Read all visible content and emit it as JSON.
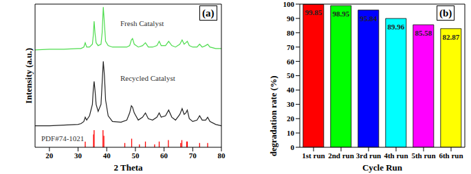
{
  "chart_data": [
    {
      "type": "line",
      "annotations": [
        "(a)"
      ],
      "xlabel": "2 Theta",
      "ylabel": "Intensity (a.u.)",
      "xlim": [
        15,
        80
      ],
      "xticks": [
        20,
        30,
        40,
        50,
        60,
        70,
        80
      ],
      "ylim": [
        0,
        100
      ],
      "yticks": [],
      "tick_labels": "x",
      "grid": false,
      "x": [
        15,
        20,
        25,
        30,
        31,
        32,
        32.5,
        33,
        34,
        35,
        35.3,
        35.6,
        35.9,
        36.3,
        37,
        38,
        38.4,
        38.8,
        39.2,
        39.6,
        40.5,
        42,
        45,
        47,
        48,
        48.6,
        49,
        49.6,
        51,
        52.5,
        53.5,
        54.5,
        56,
        57.5,
        58.3,
        59,
        60.5,
        61.6,
        62.7,
        64,
        65.5,
        66.3,
        67,
        67.6,
        68.1,
        68.8,
        70,
        71.5,
        72.4,
        73.3,
        74.5,
        75.2,
        76,
        78,
        80
      ],
      "series": [
        {
          "name": "Fresh Catalyst",
          "color": "#4ddc4d",
          "values": [
            68,
            68.5,
            68.5,
            69,
            69,
            70,
            73,
            70,
            70,
            72,
            78,
            88,
            80,
            73,
            71,
            72,
            80,
            98,
            86,
            74,
            71,
            70,
            70,
            70,
            71,
            75,
            76,
            72,
            70,
            71,
            73,
            70,
            70,
            71,
            74,
            71,
            71,
            74,
            71,
            70,
            72,
            75,
            72,
            73,
            74,
            71,
            70,
            70,
            72,
            70,
            71,
            72,
            70,
            69,
            69
          ]
        },
        {
          "name": "Recycled Catalyst",
          "color": "#222222",
          "values": [
            15,
            15,
            15.5,
            16,
            16.5,
            18,
            21,
            19,
            22,
            30,
            40,
            46,
            40,
            30,
            25,
            30,
            45,
            60,
            50,
            33,
            22,
            18,
            17.5,
            19,
            24,
            29,
            28,
            24,
            19,
            21,
            24,
            20,
            19,
            21,
            24,
            21,
            22,
            26,
            21,
            19,
            23,
            27,
            23,
            24,
            26,
            20,
            18,
            19,
            22,
            19,
            19,
            21,
            18,
            16,
            15
          ]
        },
        {
          "name": "PDF#74-1021",
          "color": "#ff0000",
          "type": "stick",
          "x": [
            32.5,
            35.4,
            35.6,
            38.7,
            39.0,
            46.3,
            48.7,
            51.4,
            53.5,
            56.7,
            58.3,
            61.5,
            65.8,
            66.2,
            67.9,
            68.1,
            72.4,
            75.2
          ],
          "values": [
            4,
            9,
            12,
            12,
            8,
            3,
            6,
            2,
            4,
            2,
            4,
            5,
            3,
            5,
            4,
            4,
            3,
            3
          ]
        }
      ]
    },
    {
      "type": "bar",
      "annotations": [
        "(b)"
      ],
      "xlabel": "Cycle Run",
      "ylabel": "degradation rate (%)",
      "categories": [
        "1st run",
        "2nd run",
        "3rd run",
        "4th run",
        "5th run",
        "6th run"
      ],
      "values": [
        99.85,
        98.95,
        95.84,
        89.96,
        85.58,
        82.87
      ],
      "colors": [
        "#ff0000",
        "#00ff00",
        "#0000ff",
        "#00ffff",
        "#ff00ff",
        "#ffff00"
      ],
      "ylim": [
        0,
        100
      ],
      "yticks": [
        0,
        10,
        20,
        30,
        40,
        50,
        60,
        70,
        80,
        90,
        100
      ],
      "data_labels": true,
      "grid": false
    }
  ]
}
